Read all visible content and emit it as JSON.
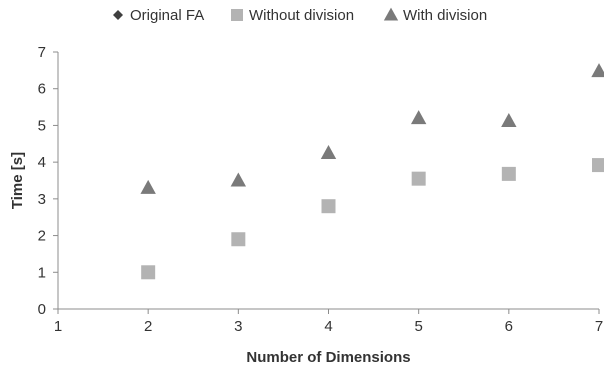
{
  "chart_data": {
    "type": "scatter",
    "title": "",
    "xlabel": "Number of Dimensions",
    "ylabel": "Time [s]",
    "xlim": [
      1,
      7
    ],
    "ylim": [
      0,
      7
    ],
    "xticks": [
      1,
      2,
      3,
      4,
      5,
      6,
      7
    ],
    "yticks": [
      0,
      1,
      2,
      3,
      4,
      5,
      6,
      7
    ],
    "grid": false,
    "legend_position": "top",
    "series": [
      {
        "name": "Original FA",
        "marker": "diamond",
        "color": "#3f3f3f",
        "x": [],
        "y": []
      },
      {
        "name": "Without division",
        "marker": "square",
        "color": "#b3b3b3",
        "x": [
          2,
          3,
          4,
          5,
          6,
          7
        ],
        "y": [
          1.0,
          1.9,
          2.8,
          3.55,
          3.68,
          3.92
        ]
      },
      {
        "name": "With division",
        "marker": "triangle",
        "color": "#7a7a7a",
        "x": [
          2,
          3,
          4,
          5,
          6,
          7
        ],
        "y": [
          3.3,
          3.5,
          4.25,
          5.2,
          5.12,
          6.48
        ]
      }
    ]
  },
  "colors": {
    "axis": "#8c8c8c",
    "text": "#333333"
  }
}
